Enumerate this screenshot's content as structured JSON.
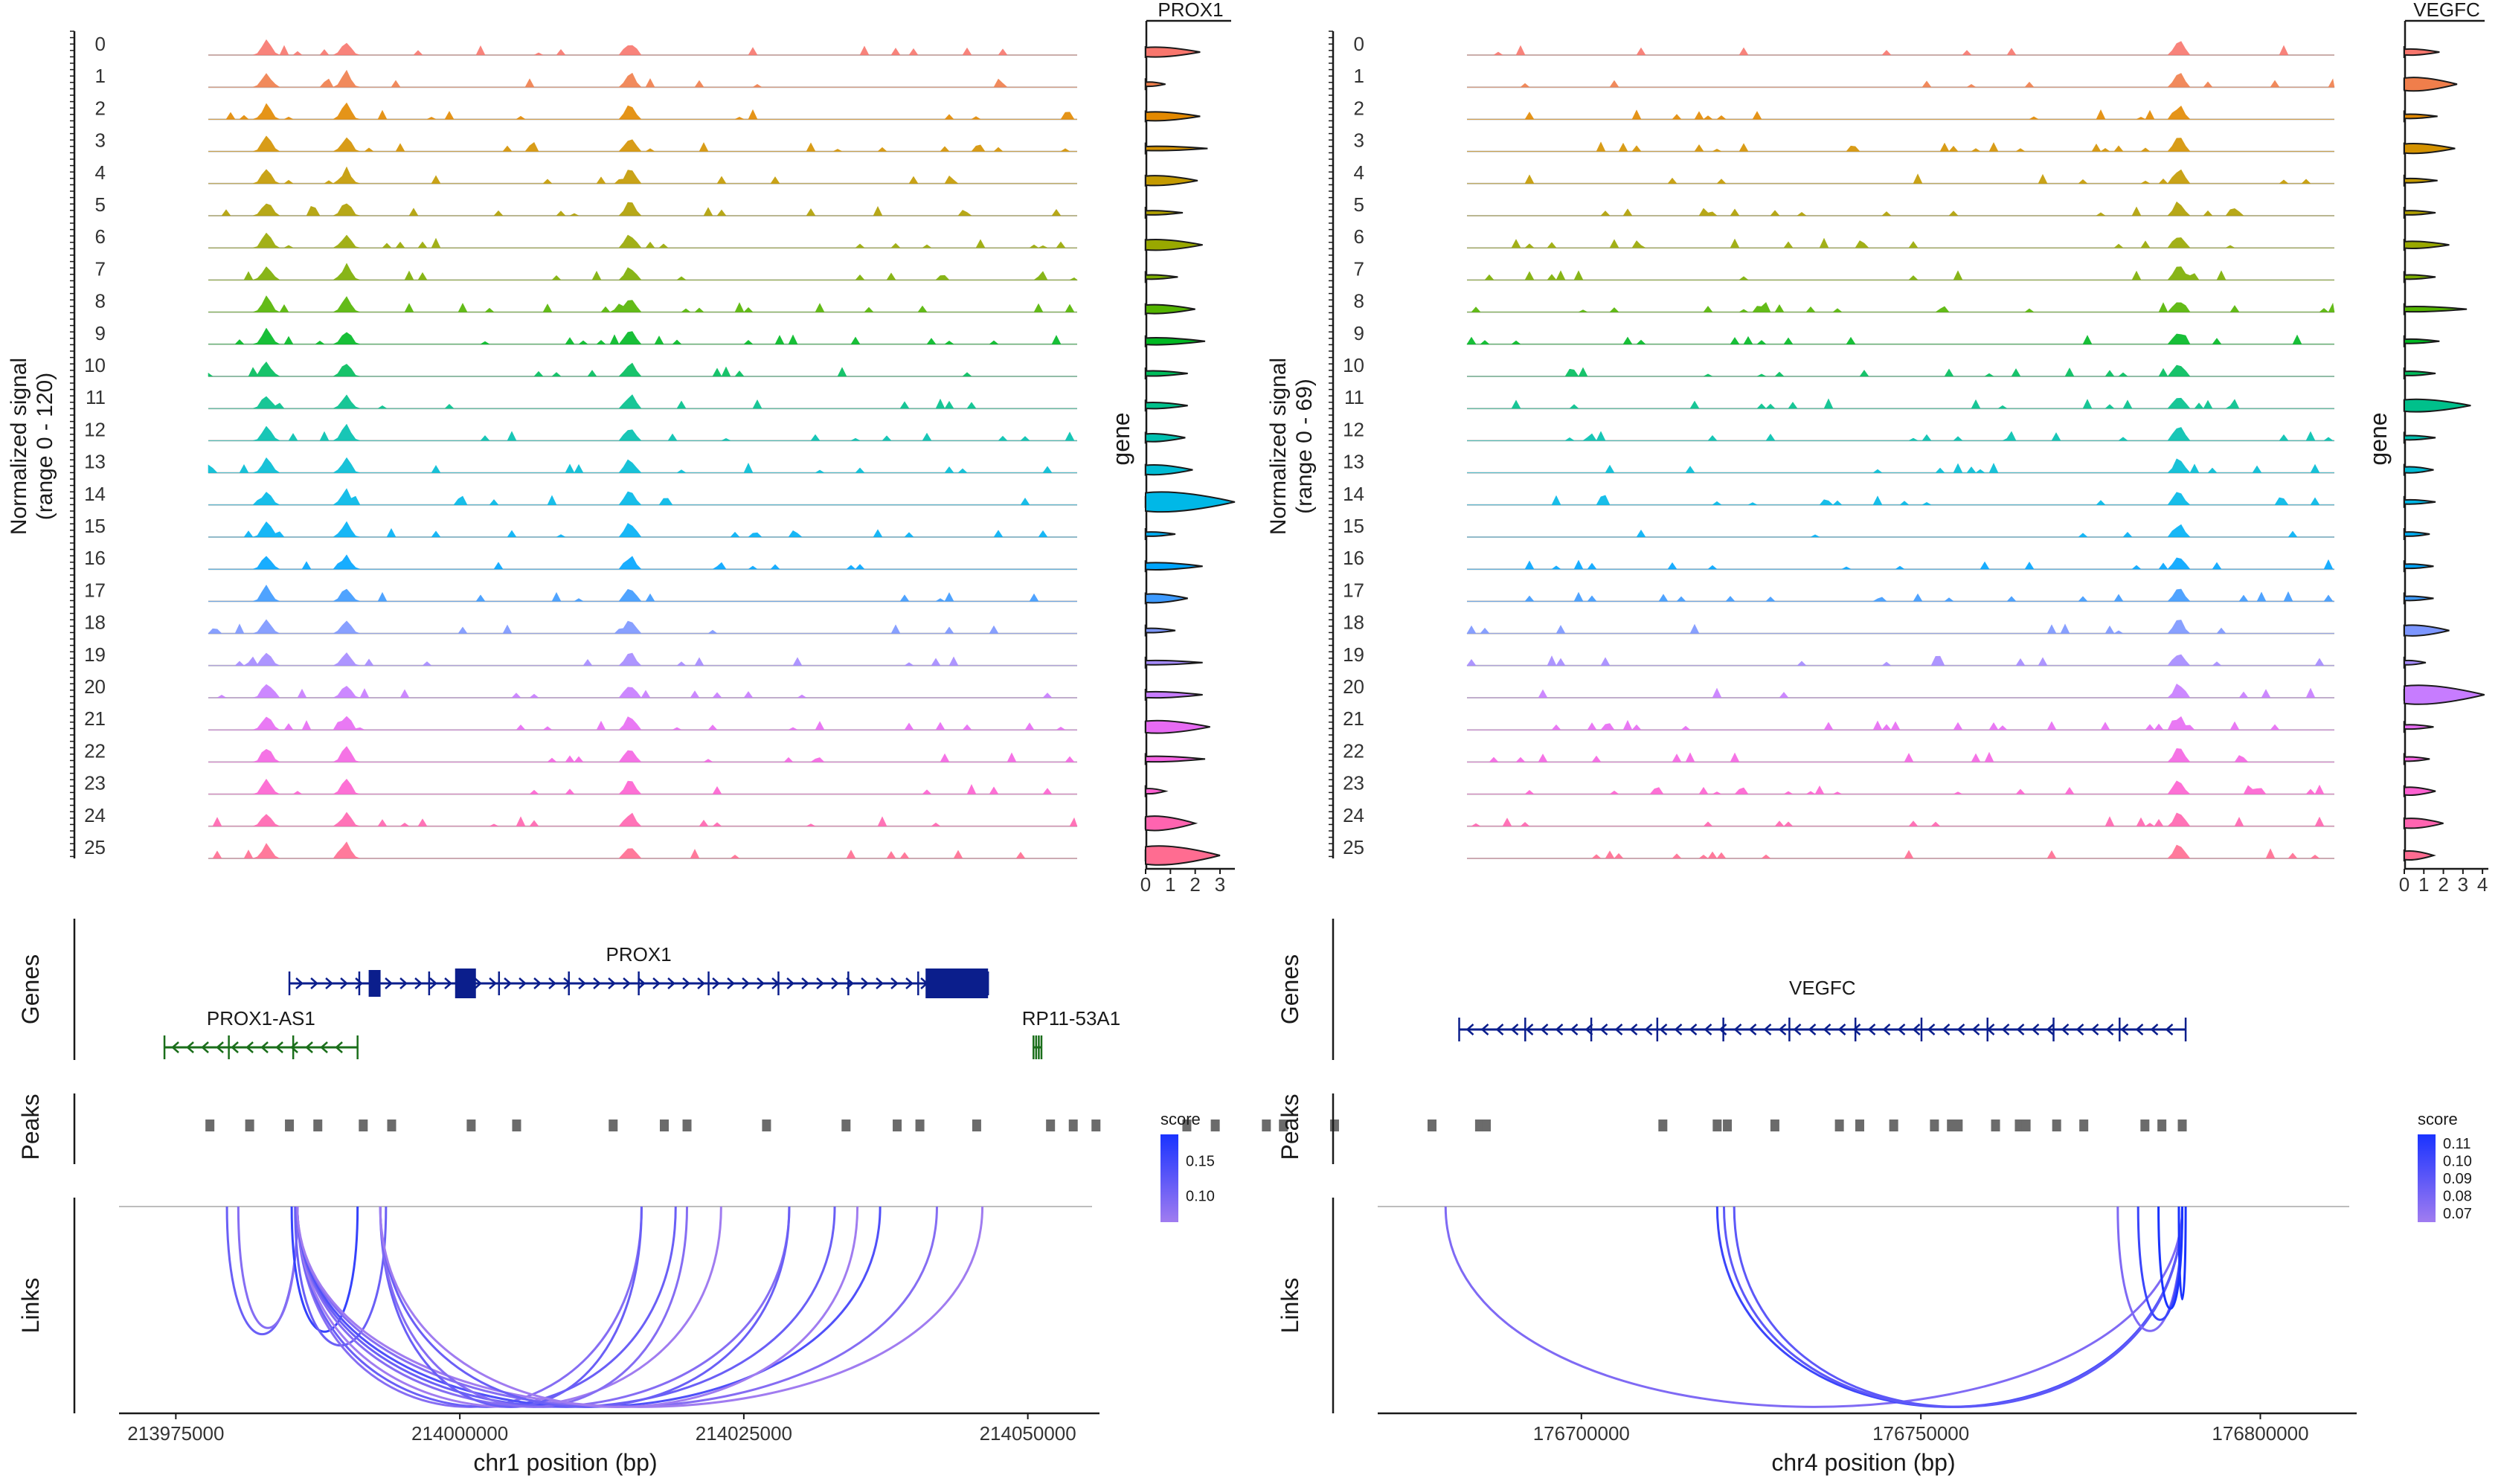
{
  "chart_data": [
    {
      "type": "coverage",
      "panel": "left",
      "ylabel": "Normalized signal\n(range 0 - 120)",
      "ylabel_lines": [
        "Normalized signal",
        "(range 0 - 120)"
      ],
      "groups": [
        "0",
        "1",
        "2",
        "3",
        "4",
        "5",
        "6",
        "7",
        "8",
        "9",
        "10",
        "11",
        "12",
        "13",
        "14",
        "15",
        "16",
        "17",
        "18",
        "19",
        "20",
        "21",
        "22",
        "23",
        "24",
        "25"
      ],
      "xlabel": "chr1 position (bp)",
      "xlim": [
        213970000,
        214055000
      ],
      "xticks": [
        213975000,
        214000000,
        214025000,
        214050000
      ],
      "xtick_labels": [
        "213975000",
        "214000000",
        "214025000",
        "214050000"
      ],
      "peak_positions": [
        213983000,
        213990000,
        214015000
      ],
      "violin": {
        "gene": "PROX1",
        "axis_label": "gene",
        "xlim": [
          0,
          3.6
        ],
        "xticks": [
          0,
          1,
          2,
          3
        ],
        "xtick_labels": [
          "0",
          "1",
          "2",
          "3"
        ],
        "widths": [
          0.35,
          0.05,
          0.3,
          0.05,
          0.35,
          0.05,
          0.4,
          0.05,
          0.3,
          0.2,
          0.1,
          0.15,
          0.25,
          0.35,
          0.9,
          0.05,
          0.2,
          0.3,
          0.05,
          0.05,
          0.15,
          0.5,
          0.12,
          0.1,
          0.6,
          0.85
        ],
        "max": [
          2.2,
          0.8,
          2.2,
          2.5,
          2.1,
          1.5,
          2.3,
          1.3,
          2.0,
          2.4,
          1.7,
          1.7,
          1.6,
          1.9,
          3.6,
          1.2,
          2.3,
          1.7,
          1.2,
          2.3,
          2.3,
          2.6,
          2.4,
          0.8,
          2.0,
          3.0
        ]
      },
      "genes_track": {
        "label": "Genes",
        "genes": [
          {
            "name": "PROX1",
            "start": 213985000,
            "end": 214046500,
            "strand": "+"
          },
          {
            "name": "PROX1-AS1",
            "start": 213974000,
            "end": 213991000,
            "strand": "-"
          },
          {
            "name": "RP11-53A1",
            "start": 214050500,
            "end": 214051200,
            "strand": "-"
          }
        ]
      },
      "peaks_track": {
        "label": "Peaks",
        "peaks": [
          213978000,
          213981500,
          213985000,
          213987500,
          213991500,
          213994000,
          214001000,
          214005000,
          214013500,
          214018000,
          214020000,
          214027000,
          214034000,
          214038500,
          214040500,
          214045500,
          214052000,
          214054000,
          214056000,
          214064000,
          214066500,
          214071000,
          214072500,
          214077000
        ]
      },
      "links_track": {
        "label": "Links",
        "score_legend": {
          "title": "score",
          "ticks": [
            0.15,
            0.1
          ],
          "tick_labels": [
            "0.15",
            "0.10"
          ]
        },
        "links": [
          [
            213979500,
            213985700,
            0.12
          ],
          [
            213980500,
            213985700,
            0.11
          ],
          [
            213985200,
            213991000,
            0.14
          ],
          [
            213985500,
            213993500,
            0.12
          ],
          [
            213985700,
            214016000,
            0.11
          ],
          [
            213985700,
            214019000,
            0.12
          ],
          [
            213985700,
            214023000,
            0.1
          ],
          [
            213985700,
            214029000,
            0.11
          ],
          [
            213985700,
            214033000,
            0.12
          ],
          [
            213985700,
            214037000,
            0.13
          ],
          [
            213985700,
            214042000,
            0.11
          ],
          [
            213985700,
            214046000,
            0.1
          ],
          [
            213993000,
            214016000,
            0.12
          ],
          [
            213993000,
            214020000,
            0.11
          ],
          [
            213993000,
            214029000,
            0.12
          ],
          [
            213993000,
            214035000,
            0.1
          ]
        ]
      }
    },
    {
      "type": "coverage",
      "panel": "right",
      "ylabel": "Normalized signal\n(range 0 - 69)",
      "ylabel_lines": [
        "Normalized signal",
        "(range 0 - 69)"
      ],
      "groups": [
        "0",
        "1",
        "2",
        "3",
        "4",
        "5",
        "6",
        "7",
        "8",
        "9",
        "10",
        "11",
        "12",
        "13",
        "14",
        "15",
        "16",
        "17",
        "18",
        "19",
        "20",
        "21",
        "22",
        "23",
        "24",
        "25"
      ],
      "xlabel": "chr4 position (bp)",
      "xlim": [
        176670000,
        176812000
      ],
      "xticks": [
        176700000,
        176750000,
        176800000
      ],
      "xtick_labels": [
        "176700000",
        "176750000",
        "176800000"
      ],
      "peak_positions": [
        176788000
      ],
      "violin": {
        "gene": "VEGFC",
        "axis_label": "gene",
        "xlim": [
          0,
          4.3
        ],
        "xticks": [
          0,
          1,
          2,
          3,
          4
        ],
        "xtick_labels": [
          "0",
          "1",
          "2",
          "3",
          "4"
        ],
        "widths": [
          0.15,
          0.55,
          0.05,
          0.35,
          0.05,
          0.05,
          0.2,
          0.05,
          0.1,
          0.05,
          0.05,
          0.5,
          0.05,
          0.15,
          0.05,
          0.05,
          0.05,
          0.05,
          0.4,
          0.05,
          0.85,
          0.05,
          0.05,
          0.25,
          0.35,
          0.3
        ],
        "max": [
          1.8,
          2.7,
          1.7,
          2.6,
          1.7,
          1.6,
          2.3,
          1.6,
          3.2,
          1.8,
          1.6,
          3.4,
          1.6,
          1.5,
          1.6,
          1.3,
          1.5,
          1.5,
          2.3,
          1.1,
          4.1,
          1.5,
          1.3,
          1.6,
          2.0,
          1.5
        ]
      },
      "genes_track": {
        "label": "Genes",
        "genes": [
          {
            "name": "VEGFC",
            "start": 176682000,
            "end": 176789000,
            "strand": "-"
          }
        ]
      },
      "peaks_track": {
        "label": "Peaks",
        "peaks": [
          176678000,
          176685000,
          176686000,
          176712000,
          176720000,
          176721500,
          176728500,
          176738000,
          176741000,
          176746000,
          176752000,
          176754500,
          176755500,
          176761000,
          176764500,
          176765500,
          176770000,
          176774000,
          176783000,
          176785500,
          176788500
        ]
      },
      "links_track": {
        "label": "Links",
        "score_legend": {
          "title": "score",
          "ticks": [
            0.11,
            0.1,
            0.09,
            0.08,
            0.07
          ],
          "tick_labels": [
            "0.11",
            "0.10",
            "0.09",
            "0.08",
            "0.07"
          ]
        },
        "links": [
          [
            176680000,
            176788500,
            0.08
          ],
          [
            176720000,
            176788500,
            0.1
          ],
          [
            176721000,
            176788500,
            0.09
          ],
          [
            176722500,
            176788500,
            0.09
          ],
          [
            176779000,
            176788500,
            0.08
          ],
          [
            176782000,
            176788500,
            0.1
          ],
          [
            176785000,
            176788500,
            0.11
          ],
          [
            176788000,
            176789000,
            0.11
          ]
        ]
      }
    }
  ],
  "palette": [
    "#f8766d",
    "#f07e4b",
    "#e38900",
    "#d49200",
    "#c49a00",
    "#b09f00",
    "#99a800",
    "#7cae00",
    "#53b400",
    "#00b923",
    "#00bd5c",
    "#00c08b",
    "#00c0af",
    "#00bcd4",
    "#00b8e7",
    "#00b0f6",
    "#00a5ff",
    "#3d9aff",
    "#7c96ff",
    "#a58aff",
    "#c77cff",
    "#e76bf3",
    "#f564e3",
    "#fd61d1",
    "#ff64b0",
    "#ff6c91"
  ],
  "link_colors": {
    "low": "#a07cf0",
    "high": "#1a33ff"
  }
}
